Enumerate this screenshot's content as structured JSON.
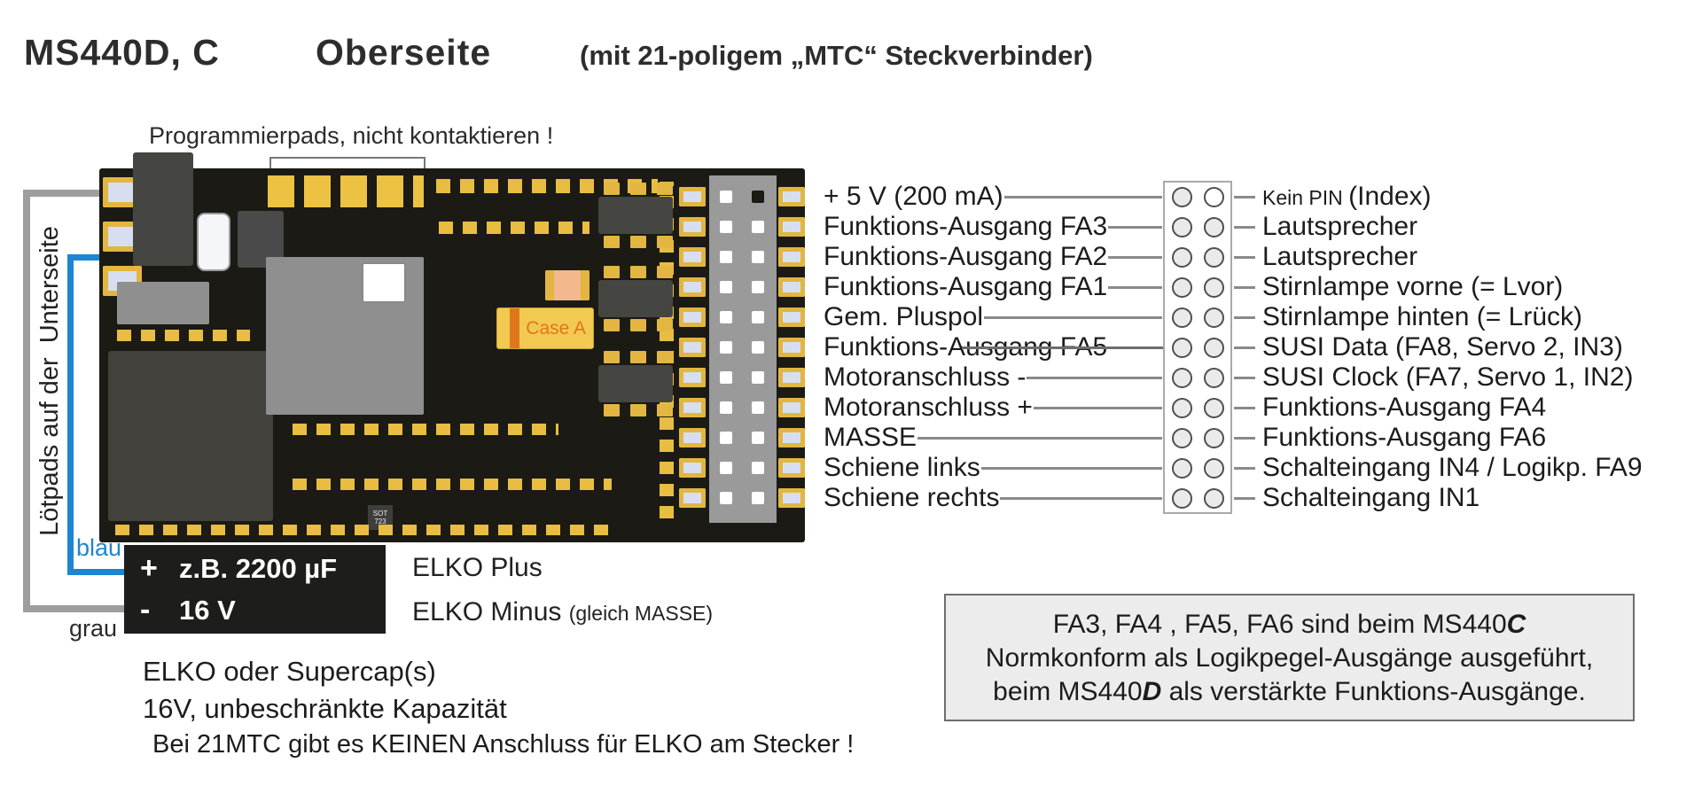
{
  "title": {
    "model": "MS440D, C",
    "side": "Oberseite",
    "connector_note": "(mit 21-poligem „MTC“ Steckverbinder)"
  },
  "pcb": {
    "programming_pads_note": "Programmierpads, nicht kontaktieren !",
    "left_note_vertical": "Lötpads auf der  Unterseite",
    "case_a_label": "Case A",
    "sot_label": "SOT 723",
    "connector_rows": 11
  },
  "wires": {
    "blue_label": "blau",
    "gray_label": "grau",
    "blue_color": "#1d86d2",
    "gray_color": "#9e9e9e"
  },
  "elko": {
    "box_line1_sign": "+",
    "box_line1_text": "z.B. 2200 µF",
    "box_line2_sign": "-",
    "box_line2_text": "16 V",
    "plus_label": "ELKO Plus",
    "minus_label": "ELKO Minus ",
    "minus_label_small": "(gleich MASSE)",
    "note1": "ELKO oder Supercap(s)",
    "note2": "16V, unbeschränkte Kapazität",
    "note3": "Bei 21MTC gibt es KEINEN Anschluss für ELKO am Stecker !"
  },
  "pins": {
    "rows": [
      {
        "left": "+ 5 V (200 mA)",
        "right_small": "Kein PIN ",
        "right": "(Index)",
        "no_pin": true
      },
      {
        "left": "Funktions-Ausgang FA3",
        "right": "Lautsprecher"
      },
      {
        "left": "Funktions-Ausgang FA2",
        "right": "Lautsprecher"
      },
      {
        "left": "Funktions-Ausgang FA1",
        "right": "Stirnlampe vorne (= Lvor)"
      },
      {
        "left": "Gem. Pluspol",
        "right": "Stirnlampe hinten (= Lrück)"
      },
      {
        "left": "Funktions-Ausgang FA5",
        "right": "SUSI Data (FA8, Servo 2, IN3)",
        "strike": true
      },
      {
        "left": "Motoranschluss -",
        "right": "SUSI Clock (FA7, Servo 1, IN2)"
      },
      {
        "left": "Motoranschluss +",
        "right": "Funktions-Ausgang FA4"
      },
      {
        "left": "MASSE",
        "right": "Funktions-Ausgang FA6"
      },
      {
        "left": "Schiene links",
        "right": "Schalteingang IN4 / Logikp. FA9"
      },
      {
        "left": "Schiene rechts",
        "right": "Schalteingang IN1"
      }
    ]
  },
  "info_box": {
    "line1_pre": "FA3, FA4 , FA5, FA6 sind beim MS440",
    "line1_em": "C",
    "line2": "Normkonform als Logikpegel-Ausgänge ausgeführt,",
    "line3_pre": "beim MS440",
    "line3_em": "D",
    "line3_post": " als verstärkte Funktions-Ausgänge."
  }
}
